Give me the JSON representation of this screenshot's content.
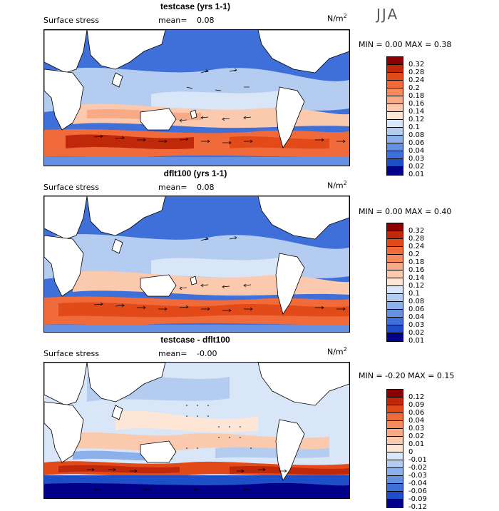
{
  "season": "JJA",
  "unit": "N/m",
  "unit_sup": "2",
  "panels": [
    {
      "title": "testcase (yrs 1-1)",
      "field": "Surface stress",
      "mean_label": "mean=",
      "mean_value": "0.08",
      "minmax": "MIN =    0.00  MAX =    0.38",
      "colorbar_labels": [
        "0.32",
        "0.28",
        "0.24",
        "0.2",
        "0.18",
        "0.16",
        "0.14",
        "0.12",
        "0.1",
        "0.08",
        "0.06",
        "0.04",
        "0.03",
        "0.02",
        "0.01"
      ],
      "colorbar_colors": [
        "#8b0000",
        "#c0280a",
        "#e24a1a",
        "#f06a3a",
        "#f58a5c",
        "#f8aa86",
        "#fbc9ae",
        "#fde6d6",
        "#d9e6f7",
        "#b3ccf0",
        "#8cb0ea",
        "#6690e2",
        "#3f6fd9",
        "#1e4ec8",
        "#00008b"
      ]
    },
    {
      "title": "dflt100 (yrs 1-1)",
      "field": "Surface stress",
      "mean_label": "mean=",
      "mean_value": "0.08",
      "minmax": "MIN =    0.00  MAX =    0.40",
      "colorbar_labels": [
        "0.32",
        "0.28",
        "0.24",
        "0.2",
        "0.18",
        "0.16",
        "0.14",
        "0.12",
        "0.1",
        "0.08",
        "0.06",
        "0.04",
        "0.03",
        "0.02",
        "0.01"
      ],
      "colorbar_colors": [
        "#8b0000",
        "#c0280a",
        "#e24a1a",
        "#f06a3a",
        "#f58a5c",
        "#f8aa86",
        "#fbc9ae",
        "#fde6d6",
        "#d9e6f7",
        "#b3ccf0",
        "#8cb0ea",
        "#6690e2",
        "#3f6fd9",
        "#1e4ec8",
        "#00008b"
      ]
    },
    {
      "title": "testcase - dflt100",
      "field": "Surface stress",
      "mean_label": "mean=",
      "mean_value": "-0.00",
      "minmax": "MIN =  -0.20  MAX =    0.15",
      "colorbar_labels": [
        "0.12",
        "0.09",
        "0.06",
        "0.04",
        "0.03",
        "0.02",
        "0.01",
        "0",
        "-0.01",
        "-0.02",
        "-0.03",
        "-0.04",
        "-0.06",
        "-0.09",
        "-0.12"
      ],
      "colorbar_colors": [
        "#8b0000",
        "#c0280a",
        "#e24a1a",
        "#f06a3a",
        "#f58a5c",
        "#f8aa86",
        "#fbc9ae",
        "#fde6d6",
        "#d9e6f7",
        "#b3ccf0",
        "#8cb0ea",
        "#6690e2",
        "#3f6fd9",
        "#1e4ec8",
        "#00008b"
      ]
    }
  ]
}
